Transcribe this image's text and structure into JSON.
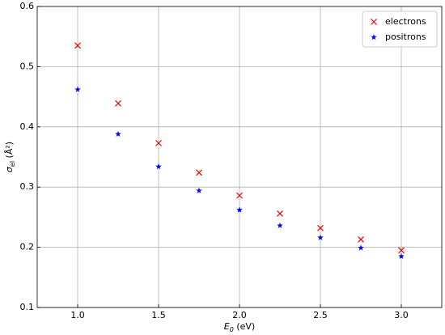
{
  "chart_data": {
    "type": "scatter",
    "xlabel": [
      "E",
      "0",
      " (eV)"
    ],
    "ylabel": [
      "σ",
      "el",
      " (Å²)"
    ],
    "xlim": [
      0.75,
      3.25
    ],
    "ylim": [
      0.1,
      0.6
    ],
    "xticks": [
      {
        "value": 1,
        "label": "1.0"
      },
      {
        "value": 1.5,
        "label": "1.5"
      },
      {
        "value": 2,
        "label": "2.0"
      },
      {
        "value": 2.5,
        "label": "2.5"
      },
      {
        "value": 3,
        "label": "3.0"
      }
    ],
    "yticks": [
      0.1,
      0.2,
      0.3,
      0.4,
      0.5,
      0.6
    ],
    "grid": true,
    "legend": "upper right",
    "series": [
      {
        "name": "electrons",
        "color": "#ff0000",
        "marker": "x",
        "x": [
          1.0,
          1.25,
          1.5,
          1.75,
          2.0,
          2.25,
          2.5,
          2.75,
          3.0
        ],
        "values": [
          0.535,
          0.439,
          0.373,
          0.324,
          0.286,
          0.256,
          0.232,
          0.213,
          0.195
        ]
      },
      {
        "name": "positrons",
        "color": "#0000ff",
        "marker": "star",
        "x": [
          1.0,
          1.25,
          1.5,
          1.75,
          2.0,
          2.25,
          2.5,
          2.75,
          3.0
        ],
        "values": [
          0.462,
          0.388,
          0.334,
          0.294,
          0.262,
          0.236,
          0.216,
          0.199,
          0.185
        ]
      }
    ]
  }
}
